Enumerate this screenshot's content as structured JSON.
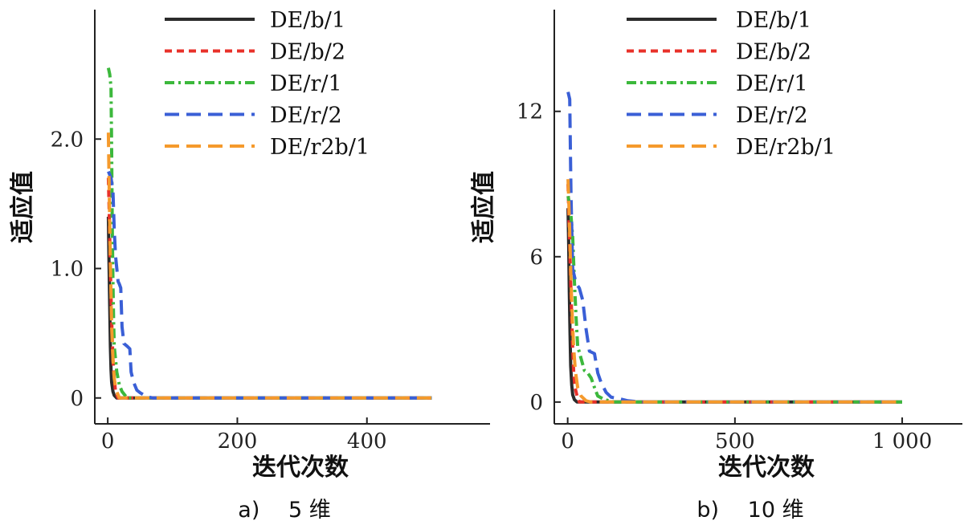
{
  "chart_data": [
    {
      "type": "line",
      "caption": "a)　 5 维",
      "xlabel": "迭代次数",
      "ylabel": "适应值",
      "xlim": [
        -20,
        590
      ],
      "ylim": [
        -0.2,
        3.0
      ],
      "xticks": [
        0,
        200,
        400
      ],
      "xtick_labels": [
        "0",
        "200",
        "400"
      ],
      "yticks": [
        0,
        1.0,
        2.0
      ],
      "ytick_labels": [
        "0",
        "1.0",
        "2.0"
      ],
      "legend_position": "top-center",
      "series": [
        {
          "name": "DE/b/1",
          "color": "#2b2b2b",
          "dash": "solid",
          "points": [
            [
              1,
              1.4
            ],
            [
              2,
              1.05
            ],
            [
              3,
              0.7
            ],
            [
              4,
              0.4
            ],
            [
              5,
              0.22
            ],
            [
              6,
              0.12
            ],
            [
              8,
              0.05
            ],
            [
              10,
              0.02
            ],
            [
              14,
              0.0
            ],
            [
              500,
              0.0
            ]
          ]
        },
        {
          "name": "DE/b/2",
          "color": "#e8312a",
          "dash": "short",
          "points": [
            [
              1,
              1.7
            ],
            [
              2,
              1.5
            ],
            [
              3,
              1.25
            ],
            [
              4,
              1.0
            ],
            [
              5,
              0.8
            ],
            [
              6,
              0.6
            ],
            [
              7,
              0.45
            ],
            [
              8,
              0.3
            ],
            [
              10,
              0.15
            ],
            [
              12,
              0.05
            ],
            [
              16,
              0.0
            ],
            [
              500,
              0.0
            ]
          ]
        },
        {
          "name": "DE/r/1",
          "color": "#3cb83c",
          "dash": "dashdot",
          "points": [
            [
              1,
              2.55
            ],
            [
              3,
              2.5
            ],
            [
              5,
              2.4
            ],
            [
              6,
              1.9
            ],
            [
              7,
              1.3
            ],
            [
              8,
              0.9
            ],
            [
              9,
              0.6
            ],
            [
              10,
              0.4
            ],
            [
              12,
              0.3
            ],
            [
              14,
              0.2
            ],
            [
              18,
              0.1
            ],
            [
              22,
              0.05
            ],
            [
              30,
              0.0
            ],
            [
              500,
              0.0
            ]
          ]
        },
        {
          "name": "DE/r/2",
          "color": "#3a5fd6",
          "dash": "long",
          "points": [
            [
              1,
              1.75
            ],
            [
              5,
              1.7
            ],
            [
              8,
              1.6
            ],
            [
              10,
              1.3
            ],
            [
              12,
              1.1
            ],
            [
              14,
              1.0
            ],
            [
              16,
              0.9
            ],
            [
              18,
              0.88
            ],
            [
              20,
              0.85
            ],
            [
              22,
              0.55
            ],
            [
              25,
              0.42
            ],
            [
              30,
              0.4
            ],
            [
              34,
              0.38
            ],
            [
              36,
              0.2
            ],
            [
              40,
              0.12
            ],
            [
              45,
              0.06
            ],
            [
              50,
              0.04
            ],
            [
              60,
              0.01
            ],
            [
              70,
              0.0
            ],
            [
              500,
              0.0
            ]
          ]
        },
        {
          "name": "DE/r2b/1",
          "color": "#f59a2c",
          "dash": "long",
          "points": [
            [
              1,
              2.05
            ],
            [
              2,
              1.7
            ],
            [
              3,
              1.35
            ],
            [
              4,
              1.05
            ],
            [
              5,
              0.8
            ],
            [
              6,
              0.55
            ],
            [
              8,
              0.3
            ],
            [
              10,
              0.15
            ],
            [
              13,
              0.06
            ],
            [
              18,
              0.0
            ],
            [
              500,
              0.0
            ]
          ]
        }
      ]
    },
    {
      "type": "line",
      "caption": "b)　 10 维",
      "xlabel": "迭代次数",
      "ylabel": "适应值",
      "xlim": [
        -40,
        1180
      ],
      "ylim": [
        -0.9,
        16.2
      ],
      "xticks": [
        0,
        500,
        1000
      ],
      "xtick_labels": [
        "0",
        "500",
        "1 000"
      ],
      "yticks": [
        0,
        6,
        12
      ],
      "ytick_labels": [
        "0",
        "6",
        "12"
      ],
      "legend_position": "top-center",
      "series": [
        {
          "name": "DE/b/1",
          "color": "#2b2b2b",
          "dash": "solid",
          "points": [
            [
              1,
              8.0
            ],
            [
              3,
              6.5
            ],
            [
              5,
              4.5
            ],
            [
              7,
              2.8
            ],
            [
              9,
              1.5
            ],
            [
              12,
              0.7
            ],
            [
              15,
              0.3
            ],
            [
              20,
              0.1
            ],
            [
              28,
              0.0
            ],
            [
              1000,
              0.0
            ]
          ]
        },
        {
          "name": "DE/b/2",
          "color": "#e8312a",
          "dash": "short",
          "points": [
            [
              1,
              9.0
            ],
            [
              3,
              8.0
            ],
            [
              6,
              6.5
            ],
            [
              9,
              5.0
            ],
            [
              12,
              3.5
            ],
            [
              15,
              2.2
            ],
            [
              18,
              1.2
            ],
            [
              22,
              0.6
            ],
            [
              28,
              0.25
            ],
            [
              35,
              0.0
            ],
            [
              1000,
              0.0
            ]
          ]
        },
        {
          "name": "DE/r/1",
          "color": "#3cb83c",
          "dash": "dashdot",
          "points": [
            [
              1,
              8.5
            ],
            [
              8,
              8.0
            ],
            [
              15,
              6.8
            ],
            [
              20,
              5.0
            ],
            [
              25,
              3.5
            ],
            [
              30,
              2.3
            ],
            [
              40,
              1.8
            ],
            [
              50,
              1.3
            ],
            [
              60,
              1.2
            ],
            [
              70,
              1.0
            ],
            [
              80,
              0.6
            ],
            [
              90,
              0.25
            ],
            [
              110,
              0.1
            ],
            [
              140,
              0.0
            ],
            [
              1000,
              0.0
            ]
          ]
        },
        {
          "name": "DE/r/2",
          "color": "#3a5fd6",
          "dash": "long",
          "points": [
            [
              1,
              12.8
            ],
            [
              6,
              12.5
            ],
            [
              10,
              8.5
            ],
            [
              15,
              5.5
            ],
            [
              25,
              4.9
            ],
            [
              35,
              4.7
            ],
            [
              45,
              4.2
            ],
            [
              55,
              3.0
            ],
            [
              65,
              2.1
            ],
            [
              80,
              2.0
            ],
            [
              90,
              1.2
            ],
            [
              100,
              0.8
            ],
            [
              115,
              0.4
            ],
            [
              130,
              0.2
            ],
            [
              150,
              0.15
            ],
            [
              180,
              0.05
            ],
            [
              220,
              0.0
            ],
            [
              1000,
              0.0
            ]
          ]
        },
        {
          "name": "DE/r2b/1",
          "color": "#f59a2c",
          "dash": "long",
          "points": [
            [
              1,
              9.2
            ],
            [
              4,
              8.0
            ],
            [
              7,
              6.5
            ],
            [
              10,
              5.0
            ],
            [
              14,
              3.4
            ],
            [
              18,
              2.2
            ],
            [
              23,
              1.3
            ],
            [
              30,
              0.6
            ],
            [
              40,
              0.25
            ],
            [
              55,
              0.05
            ],
            [
              70,
              0.0
            ],
            [
              1000,
              0.0
            ]
          ]
        }
      ]
    }
  ]
}
